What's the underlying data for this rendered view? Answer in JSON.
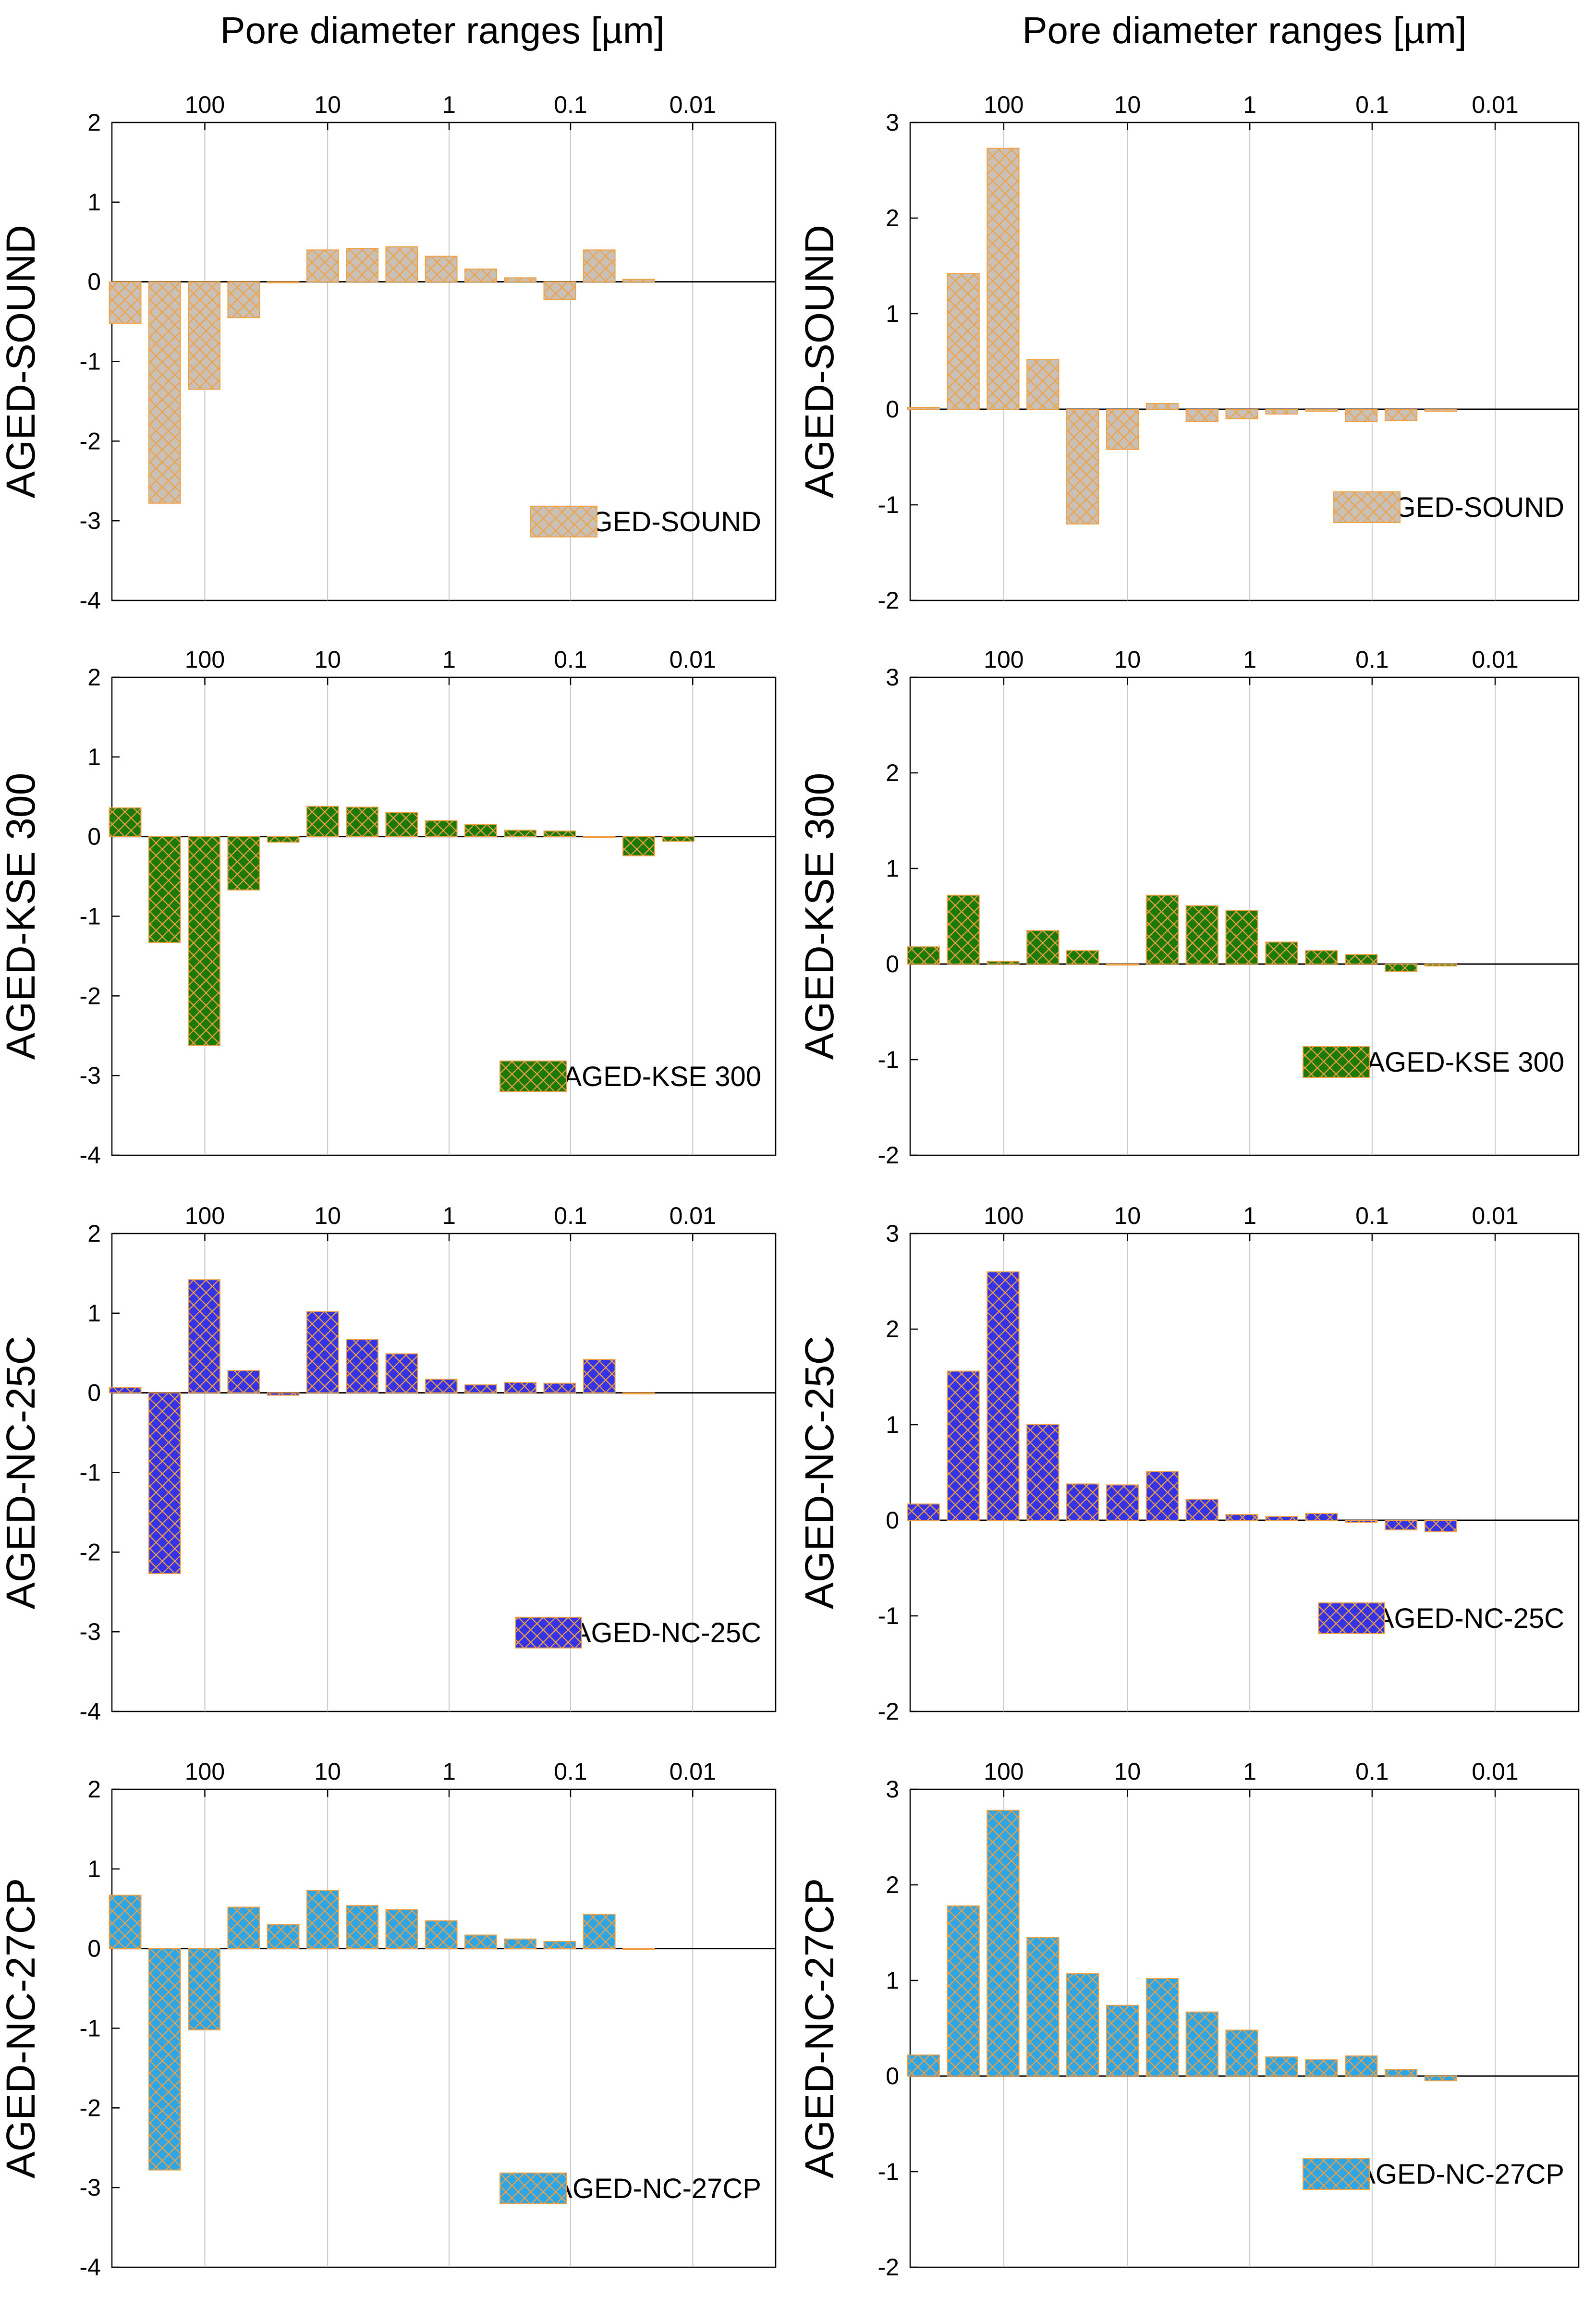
{
  "column_titles": [
    "Pore diameter ranges [µm]",
    "Pore diameter ranges [µm]"
  ],
  "colors": {
    "sound": "#c9c0b8",
    "kse": "#1c7a0a",
    "nc25c": "#3434e6",
    "nc27cp": "#2ea6e6",
    "hatch": "#f0a040",
    "axis": "#000000",
    "grid": "#c8c8c8"
  },
  "chart_data": [
    {
      "id": "l-sound",
      "type": "bar",
      "series": [
        {
          "name": "AGED-SOUND",
          "color_key": "sound"
        }
      ],
      "ylabel": "AGED-SOUND",
      "legend": "AGED-SOUND",
      "legend_position": "bottom-right",
      "x_ticks": [
        "100",
        "10",
        "1",
        "0.1",
        "0.01"
      ],
      "ylim": [
        -4,
        2
      ],
      "y_ticks": [
        "2",
        "1",
        "0",
        "-1",
        "-2",
        "-3",
        "-4"
      ],
      "values": [
        -0.52,
        -2.78,
        -1.35,
        -0.45,
        0.0,
        0.4,
        0.42,
        0.44,
        0.32,
        0.16,
        0.05,
        -0.22,
        0.4,
        0.03
      ]
    },
    {
      "id": "r-sound",
      "type": "bar",
      "series": [
        {
          "name": "AGED-SOUND",
          "color_key": "sound"
        }
      ],
      "ylabel": "AGED-SOUND",
      "legend": "AGED-SOUND",
      "legend_position": "bottom-right",
      "x_ticks": [
        "100",
        "10",
        "1",
        "0.1",
        "0.01"
      ],
      "ylim": [
        -2,
        3
      ],
      "y_ticks": [
        "3",
        "2",
        "1",
        "0",
        "-1",
        "-2"
      ],
      "values": [
        0.02,
        1.42,
        2.73,
        0.52,
        -1.2,
        -0.42,
        0.06,
        -0.13,
        -0.1,
        -0.05,
        -0.02,
        -0.13,
        -0.12,
        -0.02
      ]
    },
    {
      "id": "l-kse",
      "type": "bar",
      "series": [
        {
          "name": "AGED-KSE 300",
          "color_key": "kse"
        }
      ],
      "ylabel": "AGED-KSE 300",
      "legend": "AGED-KSE 300",
      "legend_position": "bottom-right",
      "x_ticks": [
        "100",
        "10",
        "1",
        "0.1",
        "0.01"
      ],
      "ylim": [
        -4,
        2
      ],
      "y_ticks": [
        "2",
        "1",
        "0",
        "-1",
        "-2",
        "-3",
        "-4"
      ],
      "values": [
        0.36,
        -1.33,
        -2.62,
        -0.67,
        -0.07,
        0.38,
        0.37,
        0.3,
        0.2,
        0.15,
        0.08,
        0.07,
        0.0,
        -0.24,
        -0.06
      ]
    },
    {
      "id": "r-kse",
      "type": "bar",
      "series": [
        {
          "name": "AGED-KSE 300",
          "color_key": "kse"
        }
      ],
      "ylabel": "AGED-KSE 300",
      "legend": "AGED-KSE 300",
      "legend_position": "bottom-right",
      "x_ticks": [
        "100",
        "10",
        "1",
        "0.1",
        "0.01"
      ],
      "ylim": [
        -2,
        3
      ],
      "y_ticks": [
        "3",
        "2",
        "1",
        "0",
        "-1",
        "-2"
      ],
      "values": [
        0.18,
        0.72,
        0.03,
        0.35,
        0.14,
        0.0,
        0.72,
        0.61,
        0.56,
        0.23,
        0.14,
        0.1,
        -0.08,
        -0.02
      ]
    },
    {
      "id": "l-nc25c",
      "type": "bar",
      "series": [
        {
          "name": "AGED-NC-25C",
          "color_key": "nc25c"
        }
      ],
      "ylabel": "AGED-NC-25C",
      "legend": "AGED-NC-25C",
      "legend_position": "bottom-right",
      "x_ticks": [
        "100",
        "10",
        "1",
        "0.1",
        "0.01"
      ],
      "ylim": [
        -4,
        2
      ],
      "y_ticks": [
        "2",
        "1",
        "0",
        "-1",
        "-2",
        "-3",
        "-4"
      ],
      "values": [
        0.07,
        -2.27,
        1.42,
        0.28,
        -0.03,
        1.02,
        0.67,
        0.49,
        0.17,
        0.1,
        0.13,
        0.12,
        0.42,
        0.0
      ]
    },
    {
      "id": "r-nc25c",
      "type": "bar",
      "series": [
        {
          "name": "AGED-NC-25C",
          "color_key": "nc25c"
        }
      ],
      "ylabel": "AGED-NC-25C",
      "legend": "AGED-NC-25C",
      "legend_position": "bottom-right",
      "x_ticks": [
        "100",
        "10",
        "1",
        "0.1",
        "0.01"
      ],
      "ylim": [
        -2,
        3
      ],
      "y_ticks": [
        "3",
        "2",
        "1",
        "0",
        "-1",
        "-2"
      ],
      "values": [
        0.17,
        1.56,
        2.6,
        1.0,
        0.38,
        0.37,
        0.51,
        0.22,
        0.06,
        0.04,
        0.07,
        -0.02,
        -0.1,
        -0.12
      ]
    },
    {
      "id": "l-nc27cp",
      "type": "bar",
      "series": [
        {
          "name": "AGED-NC-27CP",
          "color_key": "nc27cp"
        }
      ],
      "ylabel": "AGED-NC-27CP",
      "legend": "AGED-NC-27CP",
      "legend_position": "bottom-right",
      "x_ticks": [
        "100",
        "10",
        "1",
        "0.1",
        "0.01"
      ],
      "ylim": [
        -4,
        2
      ],
      "y_ticks": [
        "2",
        "1",
        "0",
        "-1",
        "-2",
        "-3",
        "-4"
      ],
      "values": [
        0.67,
        -2.78,
        -1.02,
        0.52,
        0.3,
        0.73,
        0.54,
        0.49,
        0.35,
        0.17,
        0.12,
        0.09,
        0.43,
        0.0
      ]
    },
    {
      "id": "r-nc27cp",
      "type": "bar",
      "series": [
        {
          "name": "AGED-NC-27CP",
          "color_key": "nc27cp"
        }
      ],
      "ylabel": "AGED-NC-27CP",
      "legend": "AGED-NC-27CP",
      "legend_position": "bottom-right",
      "x_ticks": [
        "100",
        "10",
        "1",
        "0.1",
        "0.01"
      ],
      "ylim": [
        -2,
        3
      ],
      "y_ticks": [
        "3",
        "2",
        "1",
        "0",
        "-1",
        "-2"
      ],
      "values": [
        0.22,
        1.78,
        2.78,
        1.45,
        1.07,
        0.74,
        1.02,
        0.67,
        0.48,
        0.2,
        0.17,
        0.21,
        0.07,
        -0.05
      ]
    }
  ]
}
